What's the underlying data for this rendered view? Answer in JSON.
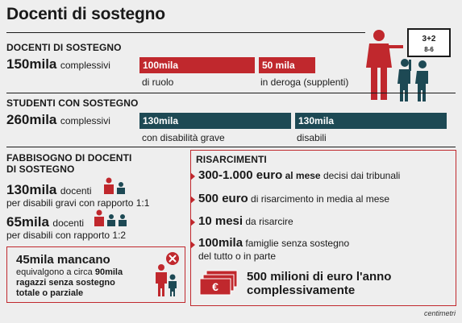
{
  "title": "Docenti di sostegno",
  "docenti": {
    "heading": "DOCENTI DI SOSTEGNO",
    "total_value": "150mila",
    "total_label": "complessivi",
    "bars": [
      {
        "value": "100mila",
        "caption": "di ruolo",
        "color": "#c0282d"
      },
      {
        "value": "50 mila",
        "caption": "in deroga (supplenti)",
        "color": "#c0282d"
      }
    ]
  },
  "studenti": {
    "heading": "STUDENTI CON SOSTEGNO",
    "total_value": "260mila",
    "total_label": "complessivi",
    "bars": [
      {
        "value": "130mila",
        "caption": "con disabilità grave",
        "color": "#1d4954"
      },
      {
        "value": "130mila",
        "caption": "disabili",
        "color": "#1d4954"
      }
    ]
  },
  "fabbisogno": {
    "heading_line1": "FABBISOGNO DI DOCENTI",
    "heading_line2": "DI SOSTEGNO",
    "item1_value": "130mila",
    "item1_unit": "docenti",
    "item1_desc": "per disabili gravi con rapporto 1:1",
    "item2_value": "65mila",
    "item2_unit": "docenti",
    "item2_desc": "per disabili con rapporto 1:2",
    "mancano_value": "45mila mancano",
    "mancano_line1_pre": "equivalgono a circa ",
    "mancano_line1_bold": "90mila",
    "mancano_line2": "ragazzi senza sostegno",
    "mancano_line3": "totale o parziale"
  },
  "risarcimenti": {
    "heading": "RISARCIMENTI",
    "items": [
      {
        "value": "300-1.000 euro",
        "bold_suffix": " al mese",
        "text": " decisi dai tribunali"
      },
      {
        "value": "500 euro",
        "text": " di risarcimento in media al mese"
      },
      {
        "value": "10 mesi",
        "text": " da risarcire"
      },
      {
        "value": "100mila",
        "text": " famiglie senza sostegno",
        "text2": "del tutto o in parte"
      }
    ],
    "total_line1": "500 milioni di euro l'anno",
    "total_line2": "complessivamente"
  },
  "chalkboard": {
    "line1": "3+2",
    "line2": "8-6"
  },
  "source": "centimetri",
  "colors": {
    "accent_red": "#c0282d",
    "accent_teal": "#1d4954",
    "background": "#eeeeee"
  }
}
